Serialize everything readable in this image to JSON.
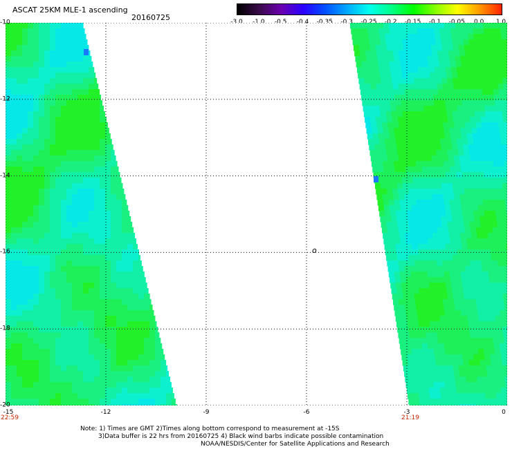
{
  "header": {
    "title": "ASCAT 25KM MLE-1 ascending",
    "date": "20160725"
  },
  "colorbar": {
    "labels": [
      "-3.0",
      "-1.0",
      "-0.5",
      "-0.4",
      "-0.35",
      "-0.3",
      "-0.25",
      "-0.2",
      "-0.15",
      "-0.1",
      "-0.05",
      "0.0",
      "1.0"
    ],
    "colors": [
      "#000000",
      "#3a0a4a",
      "#6a00b0",
      "#2a00ff",
      "#0050ff",
      "#00aaff",
      "#00ffee",
      "#00ff88",
      "#00ff00",
      "#88ff00",
      "#ffff00",
      "#ff9900",
      "#ff2200"
    ]
  },
  "map": {
    "lon_range": [
      -15,
      0
    ],
    "lat_range": [
      -20,
      -10
    ],
    "x_ticks": [
      "-15",
      "-12",
      "-9",
      "-6",
      "-3",
      "0"
    ],
    "y_ticks": [
      "-10",
      "-12",
      "-14",
      "-16",
      "-18",
      "-20"
    ],
    "left_swath_time": "22:59",
    "right_swath_time": "21:19",
    "center_marker": "o"
  },
  "notes": {
    "line1": "Note: 1) Times are GMT 2)Times along bottom correspond to measurement at -15S",
    "line2": "3)Data buffer is 22 hrs from 20160725 4) Black wind barbs indicate possible contamination",
    "line3": "NOAA/NESDIS/Center for Satellite Applications and Research"
  }
}
